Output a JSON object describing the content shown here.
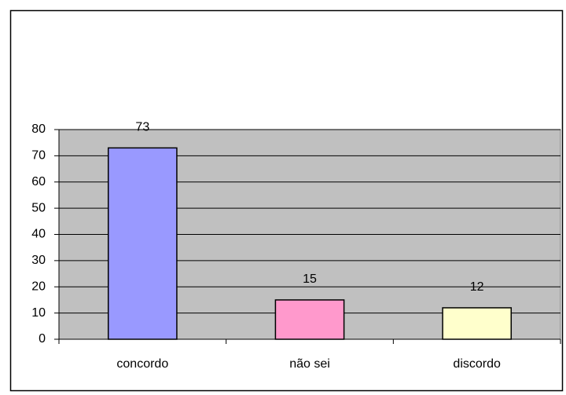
{
  "chart_data": {
    "type": "bar",
    "categories": [
      "concordo",
      "não sei",
      "discordo"
    ],
    "values": [
      73,
      15,
      12
    ],
    "colors": [
      "#9999ff",
      "#ff99cc",
      "#ffffcc"
    ],
    "ylim": [
      0,
      80
    ],
    "yticks": [
      0,
      10,
      20,
      30,
      40,
      50,
      60,
      70,
      80
    ],
    "grid": true
  }
}
